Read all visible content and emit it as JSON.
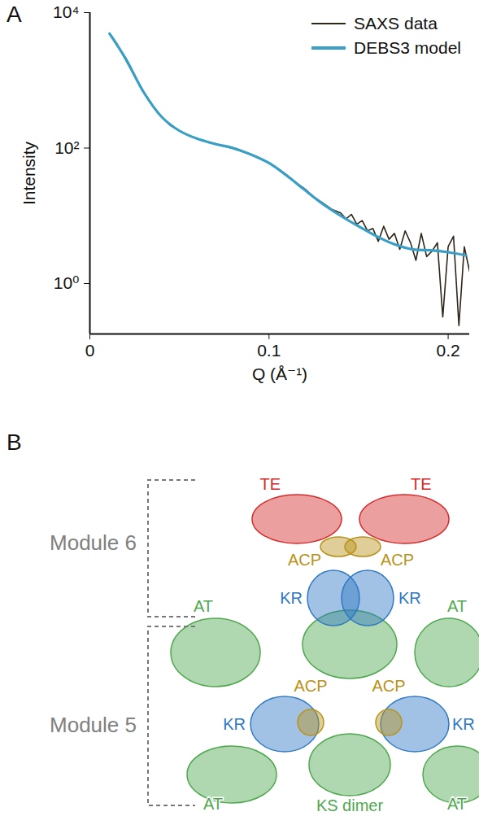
{
  "panel_labels": [
    "A",
    "B"
  ],
  "chart_data": {
    "type": "line",
    "x_label": "Q (Å⁻¹)",
    "y_label": "Intensity",
    "xlim": [
      0,
      0.212
    ],
    "xticks": [
      0,
      0.1,
      0.2
    ],
    "ylim": [
      0.18,
      10000
    ],
    "yticks": [
      {
        "value": 1,
        "label": "10⁰"
      },
      {
        "value": 100,
        "label": "10²"
      },
      {
        "value": 10000,
        "label": "10⁴"
      }
    ],
    "log": "y",
    "legend": "upper right",
    "series": [
      {
        "name": "SAXS data",
        "color": "#2e2618",
        "x": [
          0.012,
          0.015,
          0.02,
          0.025,
          0.03,
          0.035,
          0.04,
          0.045,
          0.05,
          0.055,
          0.06,
          0.065,
          0.07,
          0.075,
          0.08,
          0.085,
          0.09,
          0.095,
          0.1,
          0.105,
          0.11,
          0.115,
          0.12,
          0.125,
          0.13,
          0.135,
          0.14,
          0.143,
          0.146,
          0.149,
          0.152,
          0.155,
          0.158,
          0.161,
          0.164,
          0.167,
          0.17,
          0.173,
          0.176,
          0.179,
          0.182,
          0.185,
          0.188,
          0.191,
          0.194,
          0.197,
          0.2,
          0.203,
          0.206,
          0.209,
          0.212
        ],
        "values": [
          4600,
          3500,
          2000,
          1150,
          680,
          430,
          290,
          215,
          180,
          155,
          137,
          125,
          116,
          107,
          98,
          89,
          80,
          70,
          61,
          50,
          40,
          31,
          25,
          19,
          15.5,
          12.5,
          11,
          9,
          10.5,
          7.5,
          8.5,
          6,
          6.5,
          4.2,
          7,
          4.5,
          5.5,
          3.2,
          6,
          4,
          2.2,
          5.5,
          2.5,
          3,
          4,
          0.32,
          3.5,
          5,
          0.24,
          3.5,
          1.5
        ]
      },
      {
        "name": "DEBS3 model",
        "color": "#3a9fc6",
        "x": [
          0.011,
          0.02,
          0.03,
          0.04,
          0.05,
          0.06,
          0.07,
          0.08,
          0.09,
          0.1,
          0.11,
          0.12,
          0.13,
          0.14,
          0.15,
          0.16,
          0.17,
          0.18,
          0.19,
          0.2,
          0.21
        ],
        "values": [
          4900,
          2090,
          670,
          290,
          180,
          137,
          115,
          100,
          80,
          60,
          39,
          24,
          15,
          10,
          7,
          5,
          3.8,
          3.2,
          3.1,
          2.9,
          2.6
        ]
      }
    ]
  },
  "diagram": {
    "modules": [
      {
        "label": "Module 6",
        "domains": [
          {
            "label": "AT",
            "color": "#4fa84f"
          },
          {
            "label": "AT",
            "color": "#4fa84f"
          },
          {
            "label": "KR",
            "color": "#2f78c4"
          },
          {
            "label": "KR",
            "color": "#2f78c4"
          },
          {
            "label": "ACP",
            "color": "#b8921a"
          },
          {
            "label": "ACP",
            "color": "#b8921a"
          },
          {
            "label": "TE",
            "color": "#d42a2a"
          },
          {
            "label": "TE",
            "color": "#d42a2a"
          }
        ]
      },
      {
        "label": "Module 5",
        "domains": [
          {
            "label": "KS dimer",
            "color": "#4fa84f"
          },
          {
            "label": "AT",
            "color": "#4fa84f"
          },
          {
            "label": "AT",
            "color": "#4fa84f"
          },
          {
            "label": "KR",
            "color": "#2f78c4"
          },
          {
            "label": "KR",
            "color": "#2f78c4"
          },
          {
            "label": "ACP",
            "color": "#b8921a"
          },
          {
            "label": "ACP",
            "color": "#b8921a"
          }
        ]
      }
    ]
  }
}
